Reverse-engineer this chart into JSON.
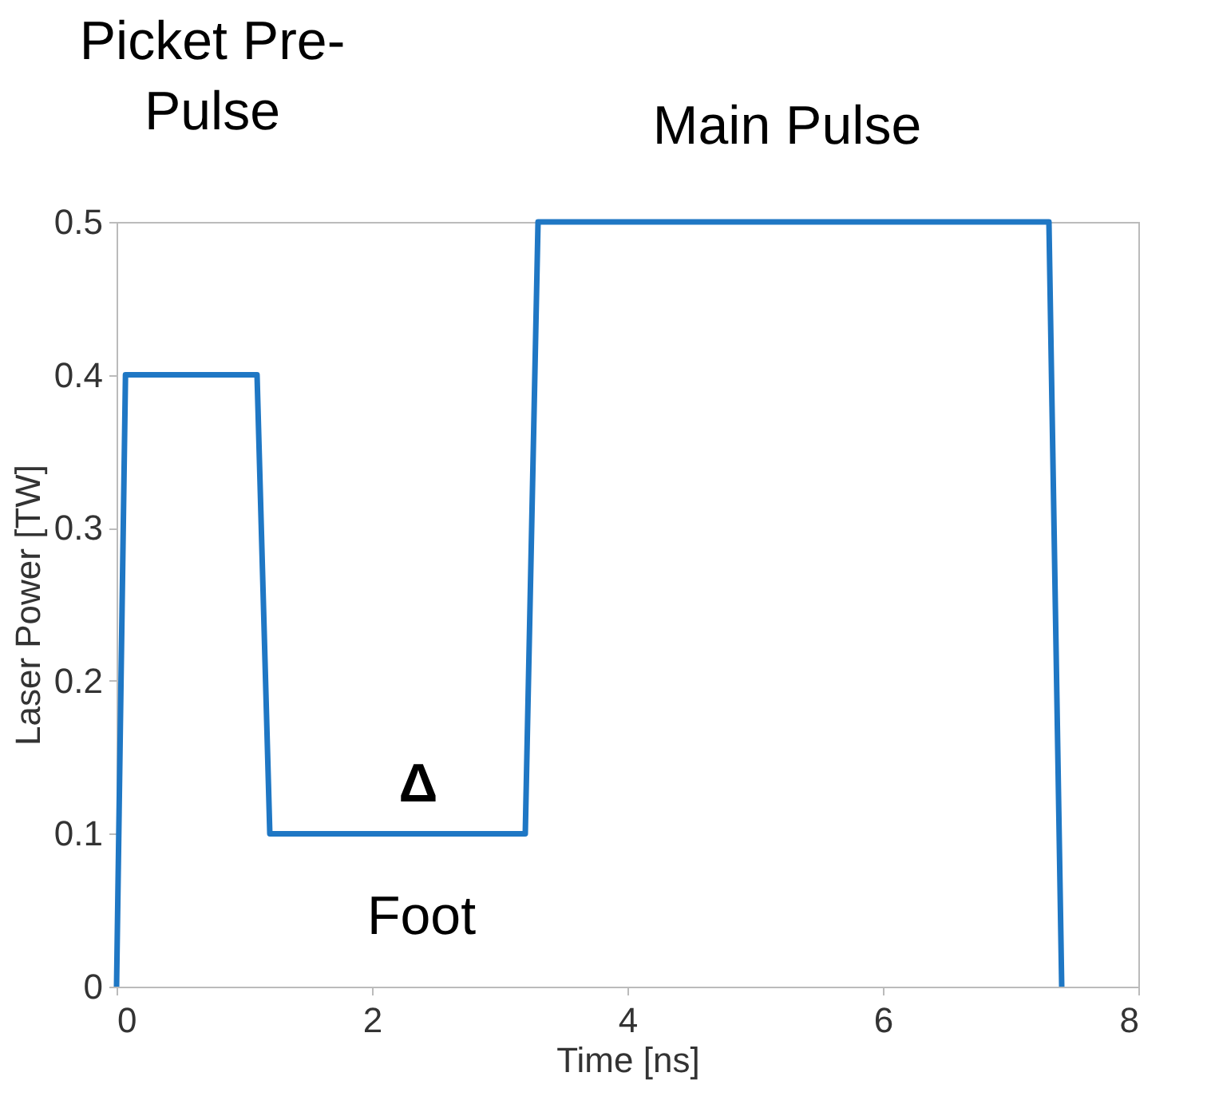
{
  "chart_data": {
    "type": "line",
    "xlabel": "Time [ns]",
    "ylabel": "Laser Power [TW]",
    "x": [
      0,
      0.07,
      1.1,
      1.2,
      3.2,
      3.3,
      7.3,
      7.4
    ],
    "series": [
      {
        "color": "#1f77c4",
        "values": [
          0,
          0.4,
          0.4,
          0.1,
          0.1,
          0.5,
          0.5,
          0
        ]
      }
    ],
    "xlim": [
      0,
      8
    ],
    "xticks": [
      0,
      2,
      4,
      6,
      8
    ],
    "ylim": [
      0,
      0.5
    ],
    "yticks": [
      0,
      0.1,
      0.2,
      0.3,
      0.4,
      0.5
    ],
    "grid": false,
    "legend": false,
    "marker": "none",
    "line_style": "solid",
    "annotations": [
      "Picket Pre-\nPulse",
      "Main Pulse",
      "Δ",
      "Foot"
    ]
  }
}
